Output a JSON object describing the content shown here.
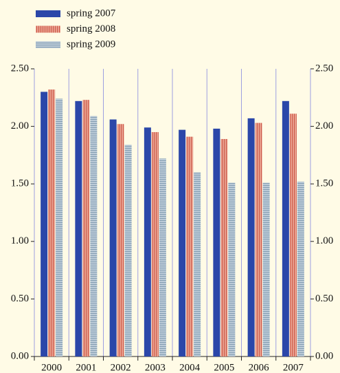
{
  "chart_data": {
    "type": "bar",
    "categories": [
      "2000",
      "2001",
      "2002",
      "2003",
      "2004",
      "2005",
      "2006",
      "2007"
    ],
    "series": [
      {
        "name": "spring 2007",
        "color": "#2b47a9",
        "values": [
          2.3,
          2.22,
          2.06,
          1.99,
          1.97,
          1.98,
          2.07,
          2.22
        ]
      },
      {
        "name": "spring 2008",
        "color": "#e9a08e",
        "values": [
          2.32,
          2.23,
          2.02,
          1.95,
          1.91,
          1.89,
          2.03,
          2.11
        ]
      },
      {
        "name": "spring 2009",
        "color": "#bccbd8",
        "values": [
          2.24,
          2.09,
          1.84,
          1.72,
          1.6,
          1.51,
          1.51,
          1.52
        ]
      }
    ],
    "ylim": [
      0,
      2.5
    ],
    "yticks": [
      {
        "value": 0,
        "label": "0.00"
      },
      {
        "value": 0.5,
        "label": "0.50"
      },
      {
        "value": 1,
        "label": "1.00"
      },
      {
        "value": 1.5,
        "label": "1.50"
      },
      {
        "value": 2,
        "label": "2.00"
      },
      {
        "value": 2.5,
        "label": "2.50"
      }
    ],
    "y2lim": [
      0,
      2.5
    ],
    "y2ticks": [
      {
        "value": 0,
        "label": "0.00"
      },
      {
        "value": 0.5,
        "label": "0.50"
      },
      {
        "value": 1,
        "label": "1.00"
      },
      {
        "value": 1.5,
        "label": "1.50"
      },
      {
        "value": 2,
        "label": "2.00"
      },
      {
        "value": 2.5,
        "label": "2.50"
      }
    ]
  }
}
